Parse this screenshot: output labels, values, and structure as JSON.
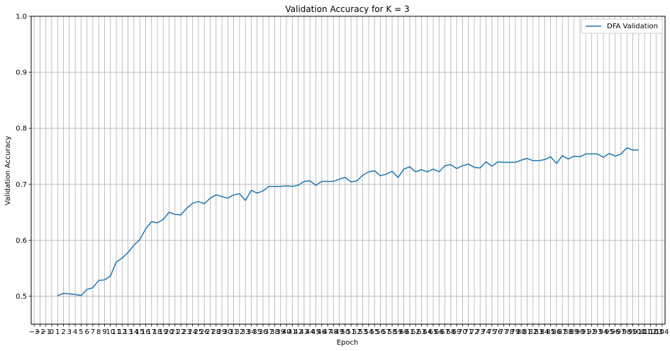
{
  "chart_data": {
    "type": "line",
    "title": "Validation Accuracy for K = 3",
    "xlabel": "Epoch",
    "ylabel": "Validation Accuracy",
    "xlim": [
      -3.5,
      104.5
    ],
    "ylim": [
      0.45,
      1.0
    ],
    "yticks": [
      0.5,
      0.6,
      0.7,
      0.8,
      0.9,
      1.0
    ],
    "ytick_labels": [
      "0.5",
      "0.6",
      "0.7",
      "0.8",
      "0.9",
      "1.0"
    ],
    "xticks_from": -3,
    "xticks_to": 104,
    "grid": true,
    "legend_position": "top-right",
    "series": [
      {
        "name": "DFA Validation",
        "color": "#1f77b4",
        "x": [
          1,
          2,
          3,
          4,
          5,
          6,
          7,
          8,
          9,
          10,
          11,
          12,
          13,
          14,
          15,
          16,
          17,
          18,
          19,
          20,
          21,
          22,
          23,
          24,
          25,
          26,
          27,
          28,
          29,
          30,
          31,
          32,
          33,
          34,
          35,
          36,
          37,
          38,
          39,
          40,
          41,
          42,
          43,
          44,
          45,
          46,
          47,
          48,
          49,
          50,
          51,
          52,
          53,
          54,
          55,
          56,
          57,
          58,
          59,
          60,
          61,
          62,
          63,
          64,
          65,
          66,
          67,
          68,
          69,
          70,
          71,
          72,
          73,
          74,
          75,
          76,
          77,
          78,
          79,
          80,
          81,
          82,
          83,
          84,
          85,
          86,
          87,
          88,
          89,
          90,
          91,
          92,
          93,
          94,
          95,
          96,
          97,
          98,
          99,
          100
        ],
        "values": [
          0.501,
          0.505,
          0.504,
          0.503,
          0.501,
          0.512,
          0.515,
          0.528,
          0.529,
          0.536,
          0.561,
          0.568,
          0.578,
          0.591,
          0.601,
          0.62,
          0.633,
          0.631,
          0.637,
          0.65,
          0.646,
          0.645,
          0.657,
          0.666,
          0.669,
          0.665,
          0.675,
          0.681,
          0.678,
          0.675,
          0.681,
          0.683,
          0.671,
          0.689,
          0.684,
          0.688,
          0.696,
          0.696,
          0.696,
          0.697,
          0.696,
          0.698,
          0.705,
          0.706,
          0.698,
          0.705,
          0.705,
          0.705,
          0.709,
          0.712,
          0.704,
          0.706,
          0.716,
          0.722,
          0.724,
          0.715,
          0.718,
          0.723,
          0.712,
          0.727,
          0.731,
          0.722,
          0.726,
          0.722,
          0.727,
          0.722,
          0.733,
          0.735,
          0.728,
          0.733,
          0.736,
          0.73,
          0.729,
          0.74,
          0.732,
          0.74,
          0.739,
          0.739,
          0.739,
          0.743,
          0.746,
          0.742,
          0.742,
          0.744,
          0.749,
          0.737,
          0.751,
          0.745,
          0.75,
          0.749,
          0.754,
          0.754,
          0.754,
          0.748,
          0.755,
          0.75,
          0.754,
          0.765,
          0.761,
          0.761
        ]
      }
    ]
  }
}
